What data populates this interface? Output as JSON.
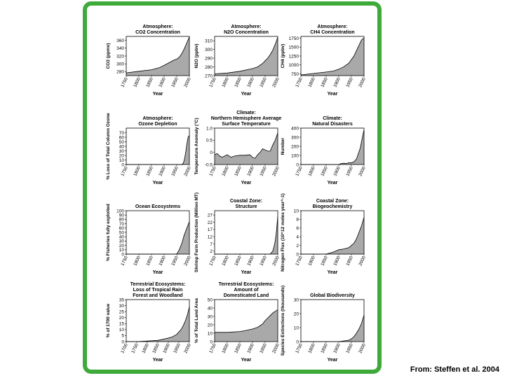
{
  "source": "From: Steffen et al. 2004",
  "chart_data": [
    {
      "type": "area",
      "title_lines": [
        "Atmosphere:",
        "CO2 Concentration"
      ],
      "ylabel": "CO2 (ppmv)",
      "xlabel": "Year",
      "ylim": [
        270,
        370
      ],
      "yticks": [
        "360",
        "340",
        "320",
        "300",
        "280"
      ],
      "ytick_values": [
        360,
        340,
        320,
        300,
        280
      ],
      "xticks": [
        "1750",
        "1800",
        "1850",
        "1900",
        "1950",
        "2000"
      ],
      "xlim": [
        1750,
        2000
      ],
      "x": [
        1750,
        1800,
        1850,
        1880,
        1900,
        1920,
        1940,
        1950,
        1960,
        1970,
        1980,
        1990,
        2000
      ],
      "y": [
        277,
        281,
        285,
        290,
        296,
        303,
        310,
        312,
        317,
        326,
        339,
        354,
        369
      ]
    },
    {
      "type": "area",
      "title_lines": [
        "Atmosphere:",
        "N2O Concentration"
      ],
      "ylabel": "N2O (ppbv)",
      "xlabel": "Year",
      "ylim": [
        270,
        315
      ],
      "yticks": [
        "310",
        "300",
        "290",
        "280",
        "270"
      ],
      "ytick_values": [
        310,
        300,
        290,
        280,
        270
      ],
      "xticks": [
        "1750",
        "1800",
        "1850",
        "1900",
        "1950",
        "2000"
      ],
      "xlim": [
        1750,
        2000
      ],
      "x": [
        1750,
        1800,
        1850,
        1900,
        1920,
        1940,
        1950,
        1960,
        1970,
        1980,
        1990,
        2000
      ],
      "y": [
        272,
        273,
        275,
        278,
        280,
        284,
        287,
        290,
        294,
        299,
        306,
        314
      ]
    },
    {
      "type": "area",
      "title_lines": [
        "Atmosphere:",
        "CH4 Concentration"
      ],
      "ylabel": "CH4 (ppbv)",
      "xlabel": "Year",
      "ylim": [
        700,
        1800
      ],
      "yticks": [
        "1750",
        "1500",
        "1250",
        "1000",
        "750"
      ],
      "ytick_values": [
        1750,
        1500,
        1250,
        1000,
        750
      ],
      "xticks": [
        "1750",
        "1800",
        "1850",
        "1900",
        "1950",
        "2000"
      ],
      "xlim": [
        1750,
        2000
      ],
      "x": [
        1750,
        1800,
        1850,
        1880,
        1900,
        1920,
        1940,
        1950,
        1960,
        1970,
        1980,
        1990,
        2000
      ],
      "y": [
        720,
        760,
        800,
        830,
        880,
        950,
        1050,
        1150,
        1250,
        1400,
        1550,
        1700,
        1760
      ]
    },
    {
      "type": "area",
      "title_lines": [
        "Atmosphere:",
        "Ozone Depletion"
      ],
      "ylabel": "% Loss of Total Column Ozone",
      "xlabel": "Year",
      "ylim": [
        0,
        80
      ],
      "yticks": [
        "70",
        "60",
        "50",
        "40",
        "30",
        "20",
        "10",
        "0"
      ],
      "ytick_values": [
        70,
        60,
        50,
        40,
        30,
        20,
        10,
        0
      ],
      "xticks": [
        "1750",
        "1800",
        "1850",
        "1900",
        "1950",
        "2000"
      ],
      "xlim": [
        1750,
        2000
      ],
      "x": [
        1750,
        1950,
        1970,
        1975,
        1980,
        1985,
        1990,
        1995,
        2000
      ],
      "y": [
        0,
        0,
        0,
        2,
        10,
        25,
        45,
        60,
        64
      ]
    },
    {
      "type": "area",
      "title_lines": [
        "Climate:",
        "Northern Hemisphere Average",
        "Surface Temperature"
      ],
      "ylabel": "Temperature Anomaly (°C)",
      "xlabel": "Year",
      "ylim": [
        -0.5,
        1.0
      ],
      "yticks": [
        "1.0",
        "0.5",
        "0",
        "-0.5"
      ],
      "ytick_values": [
        1.0,
        0.5,
        0,
        -0.5
      ],
      "xticks": [
        "1750",
        "1800",
        "1850",
        "1900",
        "1950",
        "2000"
      ],
      "xlim": [
        1750,
        2000
      ],
      "baseline": -0.5,
      "x": [
        1750,
        1760,
        1770,
        1780,
        1790,
        1800,
        1815,
        1830,
        1850,
        1870,
        1890,
        1900,
        1910,
        1920,
        1930,
        1940,
        1950,
        1960,
        1970,
        1980,
        1990,
        2000
      ],
      "y": [
        -0.1,
        -0.05,
        -0.15,
        -0.2,
        -0.15,
        -0.1,
        -0.2,
        -0.15,
        -0.12,
        -0.12,
        -0.1,
        -0.2,
        -0.25,
        -0.1,
        0.0,
        0.15,
        0.1,
        0.05,
        0.05,
        0.3,
        0.5,
        0.8
      ]
    },
    {
      "type": "area",
      "title_lines": [
        "Climate:",
        "Natural Disasters"
      ],
      "ylabel": "Number",
      "xlabel": "Year",
      "ylim": [
        0,
        400
      ],
      "yticks": [
        "400",
        "300",
        "200",
        "100",
        "0"
      ],
      "ytick_values": [
        400,
        300,
        200,
        100,
        0
      ],
      "xticks": [
        "1750",
        "1800",
        "1850",
        "1900",
        "1950",
        "2000"
      ],
      "xlim": [
        1750,
        2000
      ],
      "x": [
        1750,
        1900,
        1910,
        1920,
        1930,
        1940,
        1950,
        1960,
        1970,
        1975,
        1980,
        1985,
        1990,
        1995,
        2000
      ],
      "y": [
        0,
        0,
        10,
        15,
        10,
        20,
        20,
        30,
        60,
        100,
        140,
        180,
        250,
        320,
        380
      ]
    },
    {
      "type": "area",
      "title_lines": [
        "Ocean Ecosystems"
      ],
      "ylabel": "% Fisheries fully exploited",
      "xlabel": "Year",
      "ylim": [
        0,
        100
      ],
      "yticks": [
        "100",
        "90",
        "80",
        "70",
        "60",
        "50",
        "40",
        "30",
        "20",
        "10",
        "0"
      ],
      "ytick_values": [
        100,
        90,
        80,
        70,
        60,
        50,
        40,
        30,
        20,
        10,
        0
      ],
      "xticks": [
        "1750",
        "1800",
        "1850",
        "1900",
        "1950",
        "2000"
      ],
      "xlim": [
        1750,
        2000
      ],
      "x": [
        1750,
        1950,
        1960,
        1970,
        1980,
        1990,
        2000
      ],
      "y": [
        0,
        0,
        10,
        25,
        45,
        60,
        75
      ]
    },
    {
      "type": "area",
      "title_lines": [
        "Coastal Zone:",
        "Structure"
      ],
      "ylabel": "Shrimp Farm Production (Million MT)",
      "xlabel": "Year",
      "ylim": [
        0,
        30
      ],
      "yticks": [
        "27",
        "22",
        "17",
        "12",
        "7",
        "2"
      ],
      "ytick_values": [
        27,
        22,
        17,
        12,
        7,
        2
      ],
      "xticks": [
        "1750",
        "1800",
        "1850",
        "1900",
        "1950",
        "2000"
      ],
      "xlim": [
        1750,
        2000
      ],
      "x": [
        1750,
        1970,
        1975,
        1980,
        1985,
        1990,
        1995,
        2000
      ],
      "y": [
        0,
        0,
        1,
        2,
        5,
        9,
        16,
        26
      ]
    },
    {
      "type": "area",
      "title_lines": [
        "Coastal Zone:",
        "Biogeochemistry"
      ],
      "ylabel": "Nitrogen Flux (10^12 moles year^-1)",
      "xlabel": "Year",
      "ylim": [
        0,
        10
      ],
      "yticks": [
        "10",
        "8",
        "6",
        "4",
        "2",
        "0"
      ],
      "ytick_values": [
        10,
        8,
        6,
        4,
        2,
        0
      ],
      "xticks": [
        "1750",
        "1800",
        "1850",
        "1900",
        "1950",
        "2000"
      ],
      "xlim": [
        1750,
        2000
      ],
      "x": [
        1750,
        1850,
        1880,
        1900,
        1920,
        1940,
        1950,
        1960,
        1970,
        1980,
        1990,
        2000
      ],
      "y": [
        0,
        0,
        0.5,
        1,
        1.2,
        1.5,
        2,
        2.5,
        3.5,
        5,
        6.5,
        8.5
      ]
    },
    {
      "type": "area",
      "title_lines": [
        "Terrestrial Ecosystems:",
        "Loss of Tropical Rain",
        "Forest and Woodland"
      ],
      "ylabel": "% of 1700 value",
      "xlabel": "Year",
      "ylim": [
        0,
        35
      ],
      "yticks": [
        "35",
        "30",
        "25",
        "20",
        "15",
        "10",
        "5",
        "0"
      ],
      "ytick_values": [
        35,
        30,
        25,
        20,
        15,
        10,
        5,
        0
      ],
      "xticks": [
        "1700",
        "1750",
        "1800",
        "1850",
        "1900",
        "1950",
        "2000"
      ],
      "xlim": [
        1700,
        2000
      ],
      "x": [
        1700,
        1750,
        1800,
        1850,
        1900,
        1920,
        1940,
        1950,
        1960,
        1970,
        1980,
        1990,
        2000
      ],
      "y": [
        0,
        0,
        0.5,
        1,
        3,
        4,
        6,
        8,
        10,
        13,
        17,
        22,
        29
      ]
    },
    {
      "type": "area",
      "title_lines": [
        "Terrestrial Ecosystems:",
        "Amount of",
        "Domesticated Land"
      ],
      "ylabel": "% of Total Land Area",
      "xlabel": "Year",
      "ylim": [
        0,
        50
      ],
      "yticks": [
        "50",
        "40",
        "30",
        "20",
        "10",
        "0"
      ],
      "ytick_values": [
        50,
        40,
        30,
        20,
        10,
        0
      ],
      "xticks": [
        "1750",
        "1800",
        "1850",
        "1900",
        "1950",
        "2000"
      ],
      "xlim": [
        1750,
        2000
      ],
      "x": [
        1750,
        1800,
        1850,
        1870,
        1900,
        1920,
        1940,
        1950,
        1960,
        1970,
        1980,
        1990,
        2000
      ],
      "y": [
        11,
        11,
        12,
        13,
        15,
        17,
        21,
        25,
        28,
        31,
        34,
        36,
        38
      ]
    },
    {
      "type": "area",
      "title_lines": [
        "Global Biodiversity"
      ],
      "ylabel": "Species Extinctions (thousands)",
      "xlabel": "Year",
      "ylim": [
        0,
        30
      ],
      "yticks": [
        "30",
        "20",
        "10",
        "0"
      ],
      "ytick_values": [
        30,
        20,
        10,
        0
      ],
      "xticks": [
        "1750",
        "1800",
        "1850",
        "1900",
        "1950",
        "2000"
      ],
      "xlim": [
        1750,
        2000
      ],
      "x": [
        1750,
        1900,
        1920,
        1940,
        1950,
        1960,
        1970,
        1980,
        1990,
        2000
      ],
      "y": [
        0,
        0,
        0.5,
        1,
        2,
        3.5,
        6,
        9,
        13,
        19
      ]
    }
  ]
}
